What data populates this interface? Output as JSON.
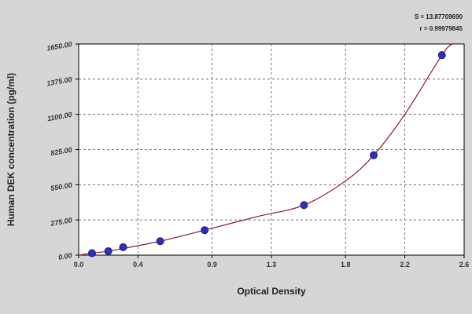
{
  "chart_data": {
    "type": "scatter",
    "title": "",
    "xlabel": "Optical Density",
    "ylabel": "Human DEK concentration (pg/ml)",
    "xlim": [
      0,
      2.6
    ],
    "ylim": [
      0,
      1650
    ],
    "x_ticks": [
      0.0,
      0.4,
      0.9,
      1.3,
      1.8,
      2.2,
      2.6
    ],
    "x_tick_labels": [
      "0.0",
      "0.4",
      "0.9",
      "1.3",
      "1.8",
      "2.2",
      "2.6"
    ],
    "y_ticks": [
      0,
      275,
      550,
      825,
      1100,
      1375,
      1650
    ],
    "y_tick_labels": [
      "0.00",
      "275.00",
      "550.00",
      "825.00",
      "1100.00",
      "1375.00",
      "1650.00"
    ],
    "grid": true,
    "legend": "none",
    "stats": [
      "S = 13.87709690",
      "r = 0.99979845"
    ],
    "series": [
      {
        "points": [
          {
            "x": 0.09,
            "y": 15
          },
          {
            "x": 0.2,
            "y": 31
          },
          {
            "x": 0.3,
            "y": 62
          },
          {
            "x": 0.55,
            "y": 109
          },
          {
            "x": 0.85,
            "y": 195
          },
          {
            "x": 1.52,
            "y": 391
          },
          {
            "x": 1.99,
            "y": 781
          },
          {
            "x": 2.45,
            "y": 1563
          }
        ],
        "marker_color": "#2f2fbf",
        "marker_edge": "#1a1a80"
      }
    ],
    "fit_curve": {
      "points": [
        {
          "x": 0.0,
          "y": 0
        },
        {
          "x": 0.09,
          "y": 15
        },
        {
          "x": 0.2,
          "y": 31
        },
        {
          "x": 0.3,
          "y": 52
        },
        {
          "x": 0.55,
          "y": 109
        },
        {
          "x": 0.85,
          "y": 195
        },
        {
          "x": 1.2,
          "y": 300
        },
        {
          "x": 1.52,
          "y": 391
        },
        {
          "x": 1.8,
          "y": 580
        },
        {
          "x": 1.99,
          "y": 781
        },
        {
          "x": 2.2,
          "y": 1100
        },
        {
          "x": 2.45,
          "y": 1563
        },
        {
          "x": 2.52,
          "y": 1650
        }
      ],
      "color": "#8b1a2a"
    },
    "colors": {
      "plot_background": "#ffffff",
      "page_background": "#d6d6d6",
      "grid": "#555555",
      "axis": "#000000"
    }
  }
}
